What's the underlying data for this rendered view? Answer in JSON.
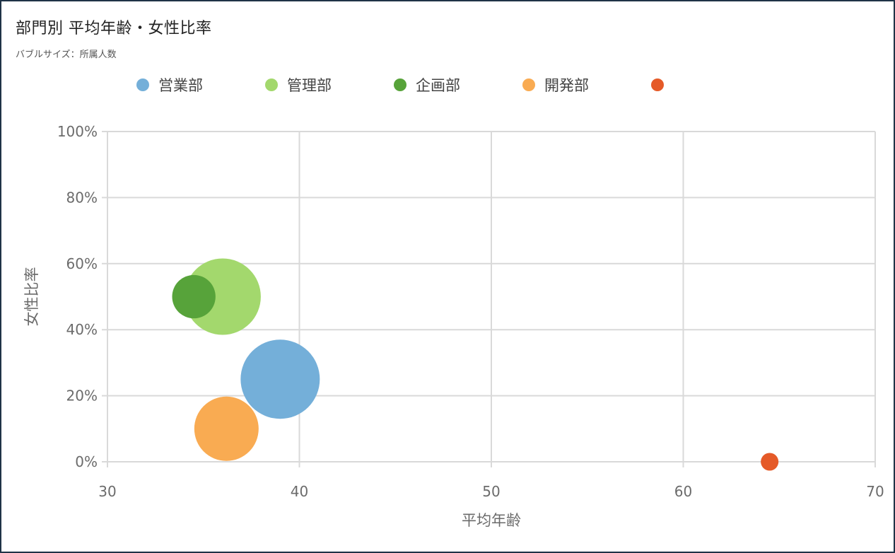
{
  "chart_data": {
    "type": "bubble",
    "title": "部門別 平均年齢・女性比率",
    "subtitle": "バブルサイズ：所属人数",
    "xlabel": "平均年齢",
    "ylabel": "女性比率",
    "xlim": [
      30,
      70
    ],
    "ylim": [
      0,
      1
    ],
    "x_ticks": [
      30,
      40,
      50,
      60,
      70
    ],
    "y_ticks": [
      0,
      0.2,
      0.4,
      0.6,
      0.8,
      1.0
    ],
    "grid": true,
    "legend_position": "top",
    "size_scale": "relative",
    "series": [
      {
        "name": "営業部",
        "color": "#74afd9",
        "x": 39.0,
        "y": 0.25,
        "size": 1.0
      },
      {
        "name": "管理部",
        "color": "#a3d86d",
        "x": 36.0,
        "y": 0.5,
        "size": 0.93
      },
      {
        "name": "企画部",
        "color": "#57a33a",
        "x": 34.5,
        "y": 0.5,
        "size": 0.3
      },
      {
        "name": "開発部",
        "color": "#f9ab52",
        "x": 36.2,
        "y": 0.1,
        "size": 0.66
      },
      {
        "name": "",
        "color": "#e55a28",
        "x": 64.5,
        "y": 0.0,
        "size": 0.05
      }
    ]
  }
}
